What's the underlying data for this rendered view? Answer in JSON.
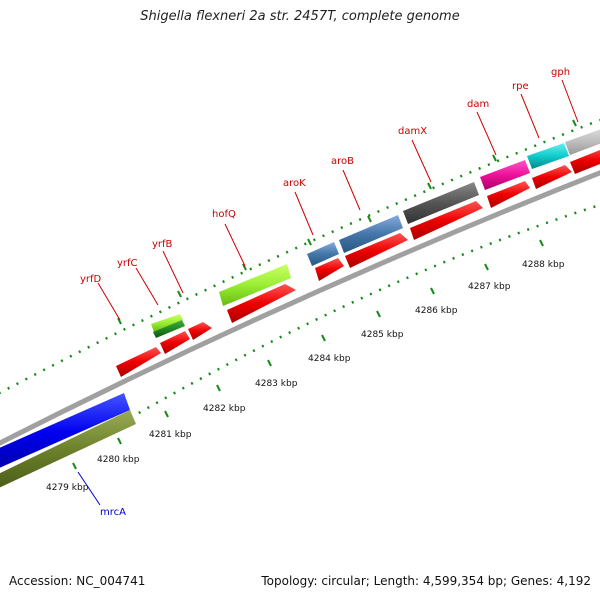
{
  "title": "Shigella flexneri 2a str. 2457T, complete genome",
  "footer": {
    "accession": "Accession: NC_004741",
    "stats": "Topology: circular; Length: 4,599,354 bp; Genes: 4,192"
  },
  "colors": {
    "red": "#ee0000",
    "backbone": "#a0a0a0",
    "tick": "#1a8a1a",
    "label_red": "#cc0000",
    "label_blue": "#0000cc"
  },
  "gene_labels": [
    {
      "text": "yrfD",
      "color": "red"
    },
    {
      "text": "yrfC",
      "color": "red"
    },
    {
      "text": "yrfB",
      "color": "red"
    },
    {
      "text": "hofQ",
      "color": "red"
    },
    {
      "text": "aroK",
      "color": "red"
    },
    {
      "text": "aroB",
      "color": "red"
    },
    {
      "text": "damX",
      "color": "red"
    },
    {
      "text": "dam",
      "color": "red"
    },
    {
      "text": "rpe",
      "color": "red"
    },
    {
      "text": "gph",
      "color": "red"
    },
    {
      "text": "mrcA",
      "color": "blue"
    }
  ],
  "tick_labels": [
    "4279 kbp",
    "4280 kbp",
    "4281 kbp",
    "4282 kbp",
    "4283 kbp",
    "4284 kbp",
    "4285 kbp",
    "4286 kbp",
    "4287 kbp",
    "4288 kbp"
  ]
}
